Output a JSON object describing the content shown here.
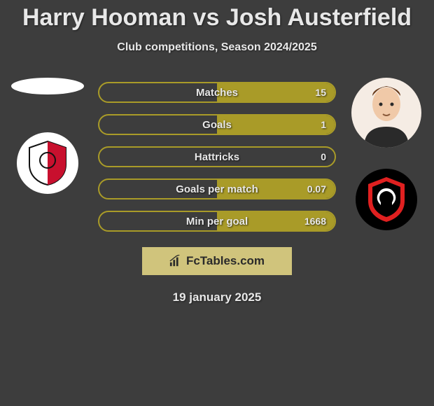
{
  "title": "Harry Hooman vs Josh Austerfield",
  "subtitle": "Club competitions, Season 2024/2025",
  "date": "19 january 2025",
  "watermark_text": "FcTables.com",
  "background_color": "#3d3d3d",
  "text_color": "#e8e8e8",
  "bar_color": "#a99b28",
  "stats": [
    {
      "label": "Matches",
      "left_value": "",
      "right_value": "15",
      "left_fill_pct": 0,
      "right_fill_pct": 100
    },
    {
      "label": "Goals",
      "left_value": "",
      "right_value": "1",
      "left_fill_pct": 0,
      "right_fill_pct": 100
    },
    {
      "label": "Hattricks",
      "left_value": "",
      "right_value": "0",
      "left_fill_pct": 0,
      "right_fill_pct": 0
    },
    {
      "label": "Goals per match",
      "left_value": "",
      "right_value": "0.07",
      "left_fill_pct": 0,
      "right_fill_pct": 100
    },
    {
      "label": "Min per goal",
      "left_value": "",
      "right_value": "1668",
      "left_fill_pct": 0,
      "right_fill_pct": 100
    }
  ],
  "players": {
    "left": {
      "name": "Harry Hooman",
      "club": "Cheltenham Town FC"
    },
    "right": {
      "name": "Josh Austerfield",
      "club": "Salford City"
    }
  },
  "club_a_colors": {
    "bg": "#ffffff",
    "accent1": "#c8102e",
    "accent2": "#111111"
  },
  "club_b_colors": {
    "bg": "#000000",
    "accent1": "#e02020",
    "accent2": "#ffffff"
  }
}
